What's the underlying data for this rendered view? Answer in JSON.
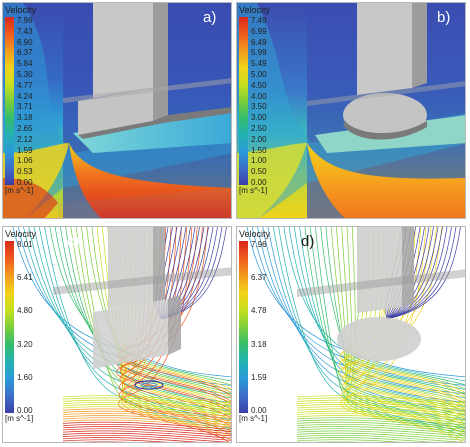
{
  "panels": [
    {
      "id": "a",
      "label": "a)",
      "legend_title": "Velocity",
      "unit": "[m s^-1]",
      "ticks": [
        "7.96",
        "7.43",
        "6.90",
        "6.37",
        "5.84",
        "5.30",
        "4.77",
        "4.24",
        "3.71",
        "3.18",
        "2.65",
        "2.12",
        "1.59",
        "1.06",
        "0.53",
        "0.00"
      ]
    },
    {
      "id": "b",
      "label": "b)",
      "legend_title": "Velocity",
      "unit": "[m s^-1]",
      "ticks": [
        "7.49",
        "6.99",
        "6.49",
        "5.99",
        "5.49",
        "5.00",
        "4.50",
        "4.00",
        "3.50",
        "3.00",
        "2.50",
        "2.00",
        "1.50",
        "1.00",
        "0.50",
        "0.00"
      ]
    },
    {
      "id": "c",
      "label": "c)",
      "legend_title": "Velocity",
      "unit": "[m s^-1]",
      "ticks": [
        "8.01",
        "6.41",
        "4.80",
        "3.20",
        "1.60",
        "0.00"
      ]
    },
    {
      "id": "d",
      "label": "d)",
      "legend_title": "Velocity",
      "unit": "[m s^-1]",
      "ticks": [
        "7.96",
        "6.37",
        "4.78",
        "3.18",
        "1.59",
        "0.00"
      ]
    }
  ],
  "colors": {
    "scale": [
      "#d8281c",
      "#f05a1e",
      "#f39a1e",
      "#f2d21a",
      "#c8e01e",
      "#7ccf3a",
      "#35bd6b",
      "#22b2b0",
      "#2a9ad8",
      "#3c6ec8",
      "#3b3ea6"
    ]
  }
}
